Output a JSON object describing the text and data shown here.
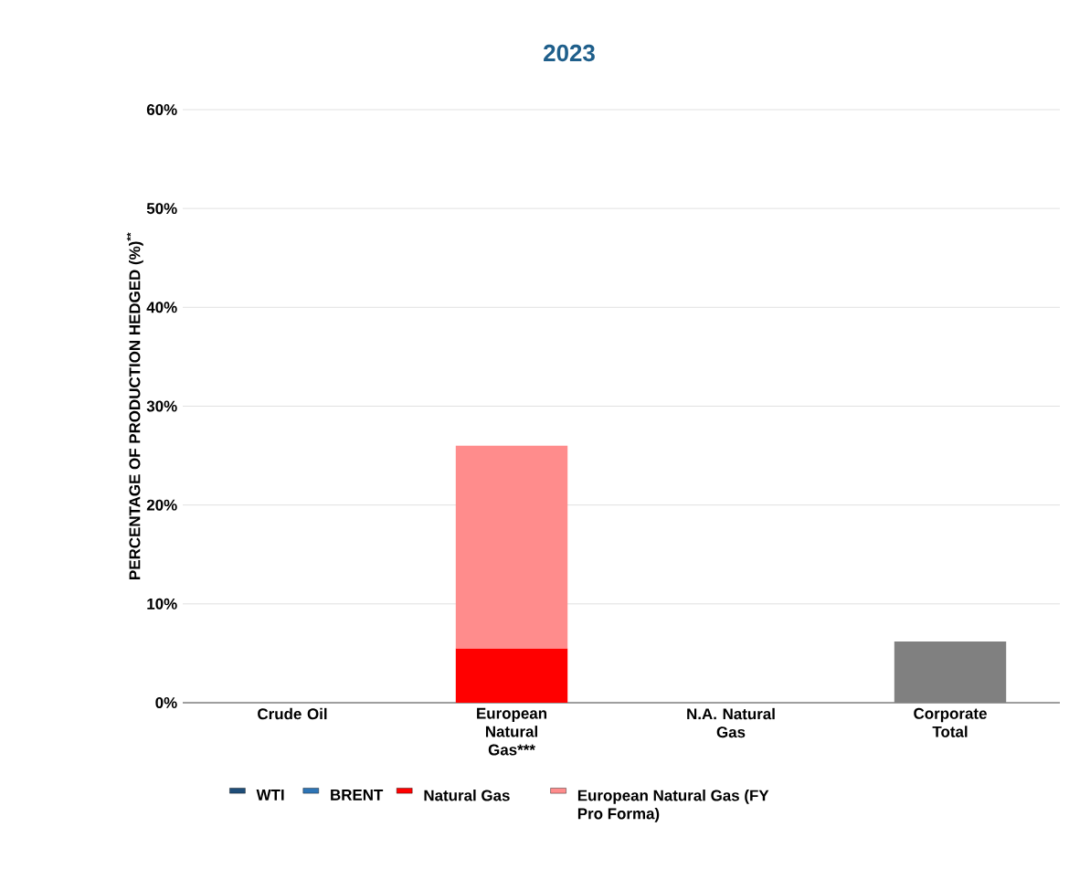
{
  "chart_data": {
    "type": "bar",
    "title": "2023",
    "ylabel": "PERCENTAGE OF PRODUCTION HEDGED (%)$^{**}$",
    "categories": [
      "Crude Oil",
      "European Natural Gas***",
      "N.A. Natural Gas",
      "Corporate Total"
    ],
    "series": [
      {
        "name": "WTI",
        "color": "#1f4e79",
        "values": [
          null,
          null,
          null,
          null
        ]
      },
      {
        "name": "BRENT",
        "color": "#2e75b6",
        "values": [
          null,
          null,
          null,
          null
        ]
      },
      {
        "name": "Natural Gas",
        "color": "#ff0000",
        "values": [
          null,
          5.5,
          null,
          null
        ]
      },
      {
        "name": "European Natural Gas (FY Pro Forma)",
        "color": "#ff8c8c",
        "values": [
          null,
          20.5,
          null,
          null
        ]
      },
      {
        "color": "#808080",
        "values": [
          null,
          null,
          null,
          6.2
        ]
      }
    ],
    "stacked": true,
    "ylim": [
      0,
      60
    ],
    "yticks": [
      {
        "value": 0,
        "label": "0%"
      },
      {
        "value": 10,
        "label": "10%"
      },
      {
        "value": 20,
        "label": "20%"
      },
      {
        "value": 30,
        "label": "30%"
      },
      {
        "value": 40,
        "label": "40%"
      },
      {
        "value": 50,
        "label": "50%"
      },
      {
        "value": 60,
        "label": "60%"
      }
    ],
    "grid": "y",
    "legend": "bottom"
  }
}
